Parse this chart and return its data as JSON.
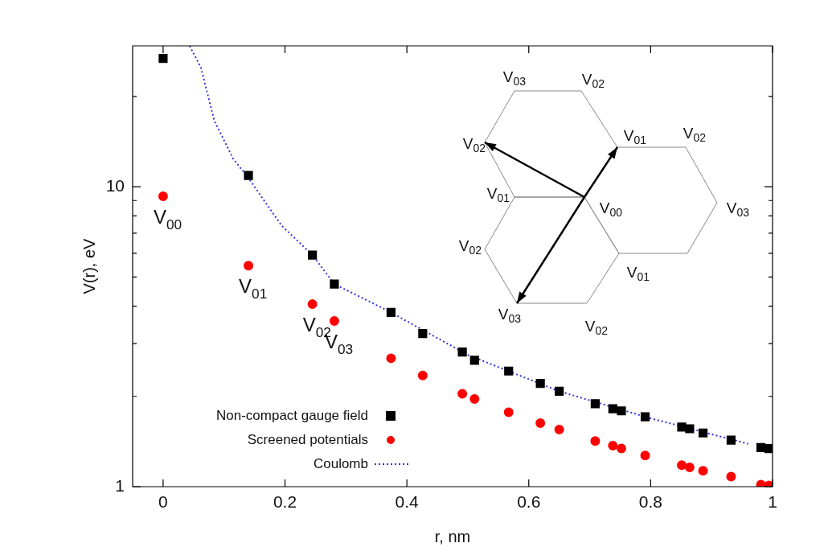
{
  "chart_data": {
    "type": "scatter",
    "xlabel": "r, nm",
    "ylabel": "V(r), eV",
    "log": "y",
    "grid": false,
    "legend": "bottom left",
    "xlim": [
      -0.05,
      1
    ],
    "xticks": [
      0,
      0.2,
      0.4,
      0.6,
      0.8,
      1
    ],
    "ylim": [
      1,
      29.5
    ],
    "yticks": [
      1,
      {
        "value": 2,
        "label": null
      },
      {
        "value": 3,
        "label": null
      },
      {
        "value": 4,
        "label": null
      },
      {
        "value": 5,
        "label": null
      },
      {
        "value": 6,
        "label": null
      },
      {
        "value": 7,
        "label": null
      },
      {
        "value": 8,
        "label": null
      },
      {
        "value": 9,
        "label": null
      },
      10,
      {
        "value": 20,
        "label": null
      }
    ],
    "series": [
      {
        "name": "Non-compact gauge field",
        "type": "scatter",
        "marker": "square",
        "color": "#000000",
        "x": [
          0,
          0.14,
          0.245,
          0.281,
          0.374,
          0.426,
          0.491,
          0.511,
          0.567,
          0.619,
          0.65,
          0.709,
          0.738,
          0.752,
          0.791,
          0.851,
          0.864,
          0.886,
          0.932,
          0.981,
          0.994
        ],
        "values": [
          26.8,
          10.9,
          5.92,
          4.74,
          3.81,
          3.24,
          2.81,
          2.64,
          2.43,
          2.21,
          2.08,
          1.89,
          1.82,
          1.79,
          1.71,
          1.58,
          1.56,
          1.51,
          1.43,
          1.35,
          1.34
        ]
      },
      {
        "name": "Screened potentials",
        "type": "scatter",
        "marker": "circle",
        "color": "#ff0000",
        "x": [
          0,
          0.14,
          0.245,
          0.281,
          0.374,
          0.426,
          0.491,
          0.511,
          0.567,
          0.619,
          0.65,
          0.709,
          0.738,
          0.752,
          0.791,
          0.851,
          0.864,
          0.886,
          0.932,
          0.981,
          0.994
        ],
        "values": [
          9.29,
          5.46,
          4.06,
          3.57,
          2.68,
          2.35,
          2.04,
          1.96,
          1.77,
          1.63,
          1.55,
          1.42,
          1.37,
          1.34,
          1.27,
          1.18,
          1.16,
          1.13,
          1.08,
          1.015,
          1.01
        ]
      },
      {
        "name": "Coulomb",
        "type": "line",
        "marker": "none",
        "line_style": "dotted",
        "color": "#3333dd",
        "x": [
          0.0435,
          0.062,
          0.084,
          0.115,
          0.14,
          0.194,
          0.245,
          0.281,
          0.374,
          0.5,
          0.65,
          0.8,
          0.96
        ],
        "values": [
          29.5,
          25.0,
          16.6,
          12.4,
          10.7,
          7.44,
          5.92,
          4.74,
          3.81,
          2.75,
          2.08,
          1.69,
          1.39
        ]
      }
    ],
    "annotations": [
      {
        "text": "V$_{00}$",
        "x": 0,
        "y": 9.29
      },
      {
        "text": "V$_{01}$",
        "x": 0.14,
        "y": 5.46
      },
      {
        "text": "V$_{02}$",
        "x": 0.245,
        "y": 4.06
      },
      {
        "text": "V$_{03}$",
        "x": 0.281,
        "y": 3.57
      },
      "V$_{03}$",
      "V$_{02}$",
      "V$_{02}$",
      "V$_{01}$",
      "V$_{02}$",
      "V$_{01}$",
      "V$_{00}$",
      "V$_{03}$",
      "V$_{02}$",
      "V$_{01}$",
      "V$_{03}$",
      "V$_{02}$"
    ]
  }
}
